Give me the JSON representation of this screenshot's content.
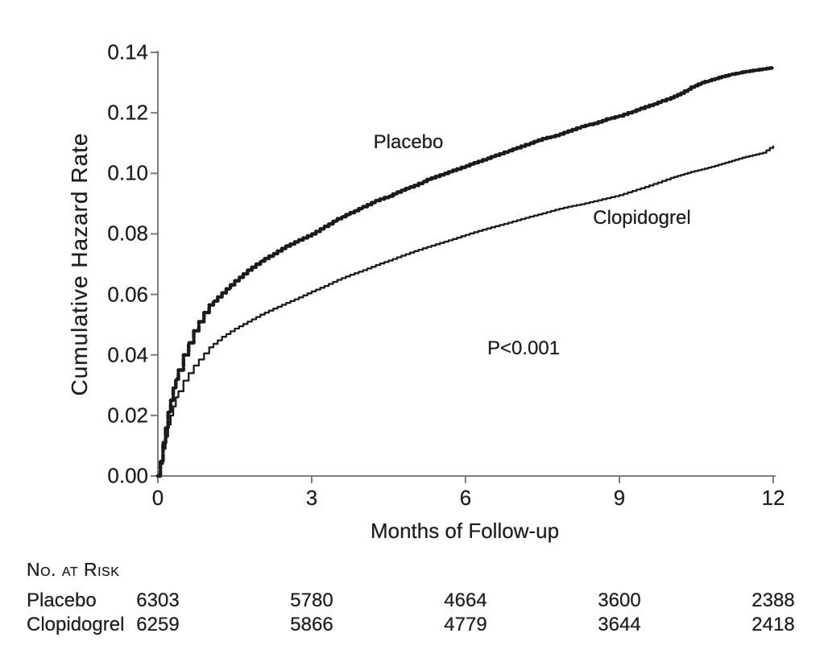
{
  "figure": {
    "background": "#ffffff",
    "ink_color": "#1b1b1b",
    "axis_color": "#7d7d7d"
  },
  "chart_data": {
    "type": "line",
    "subtype": "kaplan-meier-cumulative-hazard",
    "title": "",
    "xlabel": "Months of Follow-up",
    "ylabel": "Cumulative Hazard Rate",
    "xlim": [
      0,
      12
    ],
    "ylim": [
      0.0,
      0.14
    ],
    "grid": false,
    "legend_position": "inline-curve-labels",
    "annotation": "P<0.001",
    "x_ticks": [
      {
        "label": "0",
        "v": 0
      },
      {
        "label": "3",
        "v": 3
      },
      {
        "label": "6",
        "v": 6
      },
      {
        "label": "9",
        "v": 9
      },
      {
        "label": "12",
        "v": 12
      }
    ],
    "y_ticks": [
      {
        "label": "0.00",
        "v": 0.0
      },
      {
        "label": "0.02",
        "v": 0.02
      },
      {
        "label": "0.04",
        "v": 0.04
      },
      {
        "label": "0.06",
        "v": 0.06
      },
      {
        "label": "0.08",
        "v": 0.08
      },
      {
        "label": "0.10",
        "v": 0.1
      },
      {
        "label": "0.12",
        "v": 0.12
      },
      {
        "label": "0.14",
        "v": 0.14
      }
    ],
    "series": [
      {
        "name": "Placebo",
        "style": "thick-beaded",
        "value_at_12_months": 0.135,
        "points": [
          [
            0,
            0
          ],
          [
            0.05,
            0.005
          ],
          [
            0.1,
            0.011
          ],
          [
            0.15,
            0.016
          ],
          [
            0.2,
            0.021
          ],
          [
            0.25,
            0.025
          ],
          [
            0.3,
            0.029
          ],
          [
            0.35,
            0.032
          ],
          [
            0.4,
            0.035
          ],
          [
            0.5,
            0.04
          ],
          [
            0.6,
            0.044
          ],
          [
            0.7,
            0.048
          ],
          [
            0.8,
            0.051
          ],
          [
            0.9,
            0.054
          ],
          [
            1,
            0.0565
          ],
          [
            1.25,
            0.0605
          ],
          [
            1.5,
            0.0645
          ],
          [
            1.75,
            0.068
          ],
          [
            2,
            0.071
          ],
          [
            2.25,
            0.0735
          ],
          [
            2.5,
            0.076
          ],
          [
            2.75,
            0.078
          ],
          [
            3,
            0.08
          ],
          [
            3.25,
            0.0825
          ],
          [
            3.5,
            0.085
          ],
          [
            3.75,
            0.087
          ],
          [
            4,
            0.089
          ],
          [
            4.25,
            0.091
          ],
          [
            4.5,
            0.0925
          ],
          [
            4.75,
            0.0945
          ],
          [
            5,
            0.096
          ],
          [
            5.25,
            0.098
          ],
          [
            5.5,
            0.0995
          ],
          [
            5.75,
            0.101
          ],
          [
            6,
            0.1025
          ],
          [
            6.25,
            0.104
          ],
          [
            6.5,
            0.1055
          ],
          [
            6.75,
            0.107
          ],
          [
            7,
            0.1085
          ],
          [
            7.25,
            0.11
          ],
          [
            7.5,
            0.1115
          ],
          [
            7.75,
            0.1125
          ],
          [
            8,
            0.114
          ],
          [
            8.25,
            0.1155
          ],
          [
            8.5,
            0.1165
          ],
          [
            8.75,
            0.118
          ],
          [
            9,
            0.119
          ],
          [
            9.25,
            0.1205
          ],
          [
            9.5,
            0.122
          ],
          [
            9.75,
            0.1235
          ],
          [
            10,
            0.125
          ],
          [
            10.2,
            0.1265
          ],
          [
            10.4,
            0.1285
          ],
          [
            10.6,
            0.13
          ],
          [
            10.8,
            0.131
          ],
          [
            11,
            0.132
          ],
          [
            11.2,
            0.1328
          ],
          [
            11.4,
            0.1335
          ],
          [
            11.6,
            0.134
          ],
          [
            11.8,
            0.1345
          ],
          [
            12,
            0.135
          ]
        ]
      },
      {
        "name": "Clopidogrel",
        "style": "thin-solid",
        "value_at_12_months": 0.109,
        "points": [
          [
            0,
            0
          ],
          [
            0.05,
            0.004
          ],
          [
            0.1,
            0.009
          ],
          [
            0.15,
            0.013
          ],
          [
            0.2,
            0.017
          ],
          [
            0.25,
            0.02
          ],
          [
            0.3,
            0.023
          ],
          [
            0.35,
            0.026
          ],
          [
            0.4,
            0.028
          ],
          [
            0.5,
            0.0315
          ],
          [
            0.6,
            0.034
          ],
          [
            0.7,
            0.0365
          ],
          [
            0.8,
            0.0385
          ],
          [
            0.9,
            0.0405
          ],
          [
            1,
            0.0425
          ],
          [
            1.25,
            0.046
          ],
          [
            1.5,
            0.0487
          ],
          [
            1.75,
            0.051
          ],
          [
            2,
            0.0533
          ],
          [
            2.25,
            0.0553
          ],
          [
            2.5,
            0.0572
          ],
          [
            2.75,
            0.059
          ],
          [
            3,
            0.061
          ],
          [
            3.25,
            0.0628
          ],
          [
            3.5,
            0.0648
          ],
          [
            3.75,
            0.0665
          ],
          [
            4,
            0.068
          ],
          [
            4.25,
            0.0697
          ],
          [
            4.5,
            0.0712
          ],
          [
            4.75,
            0.0728
          ],
          [
            5,
            0.0743
          ],
          [
            5.25,
            0.0757
          ],
          [
            5.5,
            0.077
          ],
          [
            5.75,
            0.0783
          ],
          [
            6,
            0.0797
          ],
          [
            6.25,
            0.081
          ],
          [
            6.5,
            0.0822
          ],
          [
            6.75,
            0.0833
          ],
          [
            7,
            0.0845
          ],
          [
            7.25,
            0.0857
          ],
          [
            7.5,
            0.0868
          ],
          [
            7.75,
            0.088
          ],
          [
            8,
            0.089
          ],
          [
            8.25,
            0.0898
          ],
          [
            8.5,
            0.0908
          ],
          [
            8.75,
            0.0918
          ],
          [
            9,
            0.0928
          ],
          [
            9.25,
            0.0942
          ],
          [
            9.5,
            0.0955
          ],
          [
            9.75,
            0.097
          ],
          [
            10,
            0.0985
          ],
          [
            10.2,
            0.0995
          ],
          [
            10.4,
            0.1005
          ],
          [
            10.6,
            0.1013
          ],
          [
            10.8,
            0.1022
          ],
          [
            11,
            0.1032
          ],
          [
            11.2,
            0.1042
          ],
          [
            11.4,
            0.1052
          ],
          [
            11.6,
            0.106
          ],
          [
            11.8,
            0.1068
          ],
          [
            12,
            0.1092
          ]
        ]
      }
    ]
  },
  "risk_table": {
    "heading": "No. at Risk",
    "time_points": [
      0,
      3,
      6,
      9,
      12
    ],
    "rows": [
      {
        "label": "Placebo",
        "values": [
          "6303",
          "5780",
          "4664",
          "3600",
          "2388"
        ]
      },
      {
        "label": "Clopidogrel",
        "values": [
          "6259",
          "5866",
          "4779",
          "3644",
          "2418"
        ]
      }
    ]
  }
}
